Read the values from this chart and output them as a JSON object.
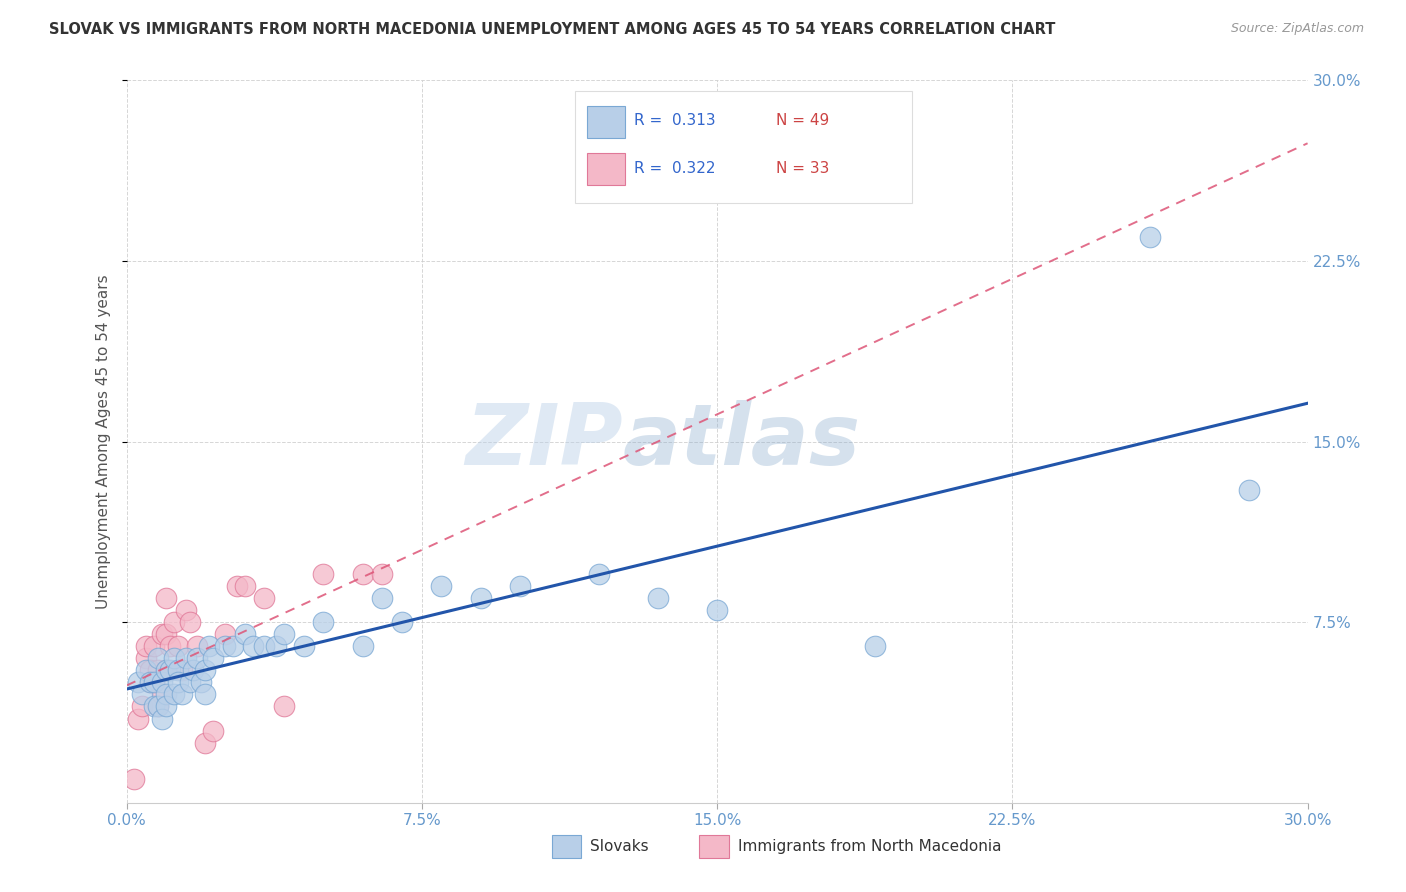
{
  "title": "SLOVAK VS IMMIGRANTS FROM NORTH MACEDONIA UNEMPLOYMENT AMONG AGES 45 TO 54 YEARS CORRELATION CHART",
  "source": "Source: ZipAtlas.com",
  "ylabel": "Unemployment Among Ages 45 to 54 years",
  "xlim": [
    0.0,
    0.3
  ],
  "ylim": [
    0.0,
    0.3
  ],
  "xticks": [
    0.0,
    0.075,
    0.15,
    0.225,
    0.3
  ],
  "yticks": [
    0.075,
    0.15,
    0.225,
    0.3
  ],
  "xtick_labels": [
    "0.0%",
    "7.5%",
    "15.0%",
    "22.5%",
    "30.0%"
  ],
  "right_ytick_labels": [
    "7.5%",
    "15.0%",
    "22.5%",
    "30.0%"
  ],
  "background_color": "#ffffff",
  "grid_color": "#cccccc",
  "watermark_zip": "ZIP",
  "watermark_atlas": "atlas",
  "legend_R1": "R = 0.313",
  "legend_N1": "N = 49",
  "legend_R2": "R = 0.322",
  "legend_N2": "N = 33",
  "blue_scatter_face": "#b8cfe8",
  "blue_scatter_edge": "#7aa8d4",
  "pink_scatter_face": "#f4b8c8",
  "pink_scatter_edge": "#e07898",
  "line_blue": "#2255aa",
  "line_pink": "#dd5577",
  "slovaks_x": [
    0.003,
    0.004,
    0.005,
    0.006,
    0.007,
    0.007,
    0.008,
    0.008,
    0.009,
    0.009,
    0.01,
    0.01,
    0.01,
    0.011,
    0.012,
    0.012,
    0.013,
    0.013,
    0.014,
    0.015,
    0.016,
    0.017,
    0.018,
    0.019,
    0.02,
    0.02,
    0.021,
    0.022,
    0.025,
    0.027,
    0.03,
    0.032,
    0.035,
    0.038,
    0.04,
    0.045,
    0.05,
    0.06,
    0.065,
    0.07,
    0.08,
    0.09,
    0.1,
    0.12,
    0.135,
    0.15,
    0.19,
    0.26,
    0.285
  ],
  "slovaks_y": [
    0.05,
    0.045,
    0.055,
    0.05,
    0.05,
    0.04,
    0.06,
    0.04,
    0.05,
    0.035,
    0.055,
    0.045,
    0.04,
    0.055,
    0.06,
    0.045,
    0.055,
    0.05,
    0.045,
    0.06,
    0.05,
    0.055,
    0.06,
    0.05,
    0.055,
    0.045,
    0.065,
    0.06,
    0.065,
    0.065,
    0.07,
    0.065,
    0.065,
    0.065,
    0.07,
    0.065,
    0.075,
    0.065,
    0.085,
    0.075,
    0.09,
    0.085,
    0.09,
    0.095,
    0.085,
    0.08,
    0.065,
    0.235,
    0.13
  ],
  "macedonian_x": [
    0.002,
    0.003,
    0.004,
    0.005,
    0.005,
    0.006,
    0.006,
    0.007,
    0.007,
    0.008,
    0.008,
    0.009,
    0.009,
    0.01,
    0.01,
    0.01,
    0.011,
    0.012,
    0.013,
    0.014,
    0.015,
    0.016,
    0.018,
    0.02,
    0.022,
    0.025,
    0.028,
    0.03,
    0.035,
    0.04,
    0.05,
    0.06,
    0.065
  ],
  "macedonian_y": [
    0.01,
    0.035,
    0.04,
    0.06,
    0.065,
    0.05,
    0.055,
    0.05,
    0.065,
    0.04,
    0.055,
    0.07,
    0.045,
    0.055,
    0.07,
    0.085,
    0.065,
    0.075,
    0.065,
    0.055,
    0.08,
    0.075,
    0.065,
    0.025,
    0.03,
    0.07,
    0.09,
    0.09,
    0.085,
    0.04,
    0.095,
    0.095,
    0.095
  ]
}
